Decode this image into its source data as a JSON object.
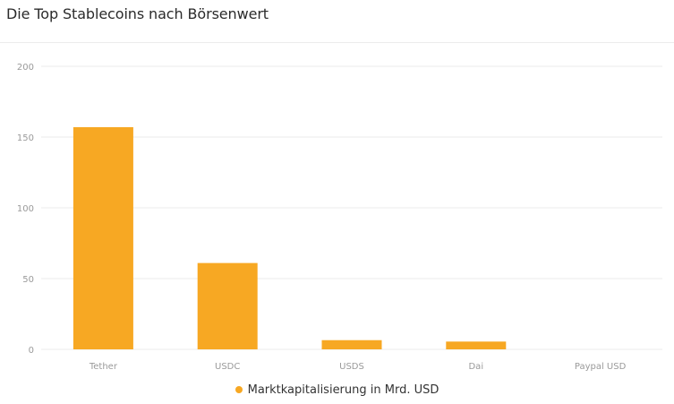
{
  "header": {
    "title": "Die Top Stablecoins nach Börsenwert"
  },
  "colors": {
    "bar": "#F7A823",
    "grid": "#EBEBEB",
    "tick_text": "#9A9A9A"
  },
  "chart_data": {
    "type": "bar",
    "title": "Die Top Stablecoins nach Börsenwert",
    "xlabel": "",
    "ylabel": "",
    "categories": [
      "Tether",
      "USDC",
      "USDS",
      "Dai",
      "Paypal USD"
    ],
    "series": [
      {
        "name": "Marktkapitalisierung in Mrd. USD",
        "values": [
          157,
          61,
          6.5,
          5.5,
          0
        ]
      }
    ],
    "yticks": [
      "0",
      "50",
      "100",
      "150",
      "200"
    ],
    "ylim": [
      0,
      200
    ],
    "grid": true,
    "legend_position": "bottom-center"
  }
}
